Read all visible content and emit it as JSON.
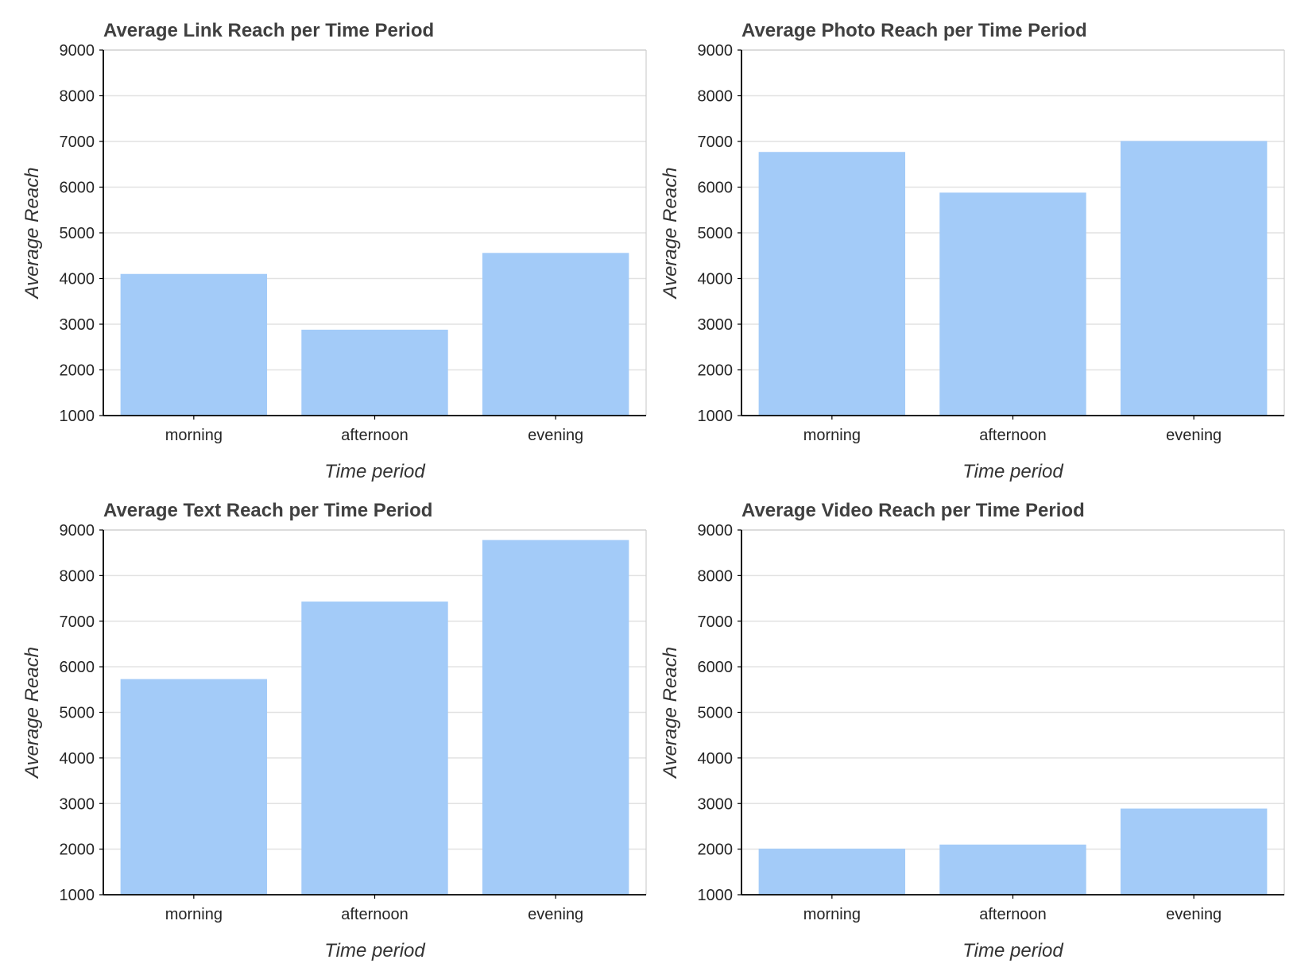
{
  "style": {
    "bar_color": "#a3cbf8",
    "title_color": "#404040"
  },
  "chart_data": [
    {
      "type": "bar",
      "title": "Average Link Reach per Time Period",
      "xlabel": "Time period",
      "ylabel": "Average Reach",
      "categories": [
        "morning",
        "afternoon",
        "evening"
      ],
      "values": [
        4100,
        2880,
        4560
      ],
      "ylim": [
        1000,
        9000
      ],
      "yticks": [
        1000,
        2000,
        3000,
        4000,
        5000,
        6000,
        7000,
        8000,
        9000
      ],
      "grid": true
    },
    {
      "type": "bar",
      "title": "Average Photo Reach per Time Period",
      "xlabel": "Time period",
      "ylabel": "Average Reach",
      "categories": [
        "morning",
        "afternoon",
        "evening"
      ],
      "values": [
        6770,
        5880,
        7010
      ],
      "ylim": [
        1000,
        9000
      ],
      "yticks": [
        1000,
        2000,
        3000,
        4000,
        5000,
        6000,
        7000,
        8000,
        9000
      ],
      "grid": true
    },
    {
      "type": "bar",
      "title": "Average Text Reach per Time Period",
      "xlabel": "Time period",
      "ylabel": "Average Reach",
      "categories": [
        "morning",
        "afternoon",
        "evening"
      ],
      "values": [
        5730,
        7430,
        8780
      ],
      "ylim": [
        1000,
        9000
      ],
      "yticks": [
        1000,
        2000,
        3000,
        4000,
        5000,
        6000,
        7000,
        8000,
        9000
      ],
      "grid": true
    },
    {
      "type": "bar",
      "title": "Average Video Reach per Time Period",
      "xlabel": "Time period",
      "ylabel": "Average Reach",
      "categories": [
        "morning",
        "afternoon",
        "evening"
      ],
      "values": [
        2010,
        2100,
        2890
      ],
      "ylim": [
        1000,
        9000
      ],
      "yticks": [
        1000,
        2000,
        3000,
        4000,
        5000,
        6000,
        7000,
        8000,
        9000
      ],
      "grid": true
    }
  ]
}
